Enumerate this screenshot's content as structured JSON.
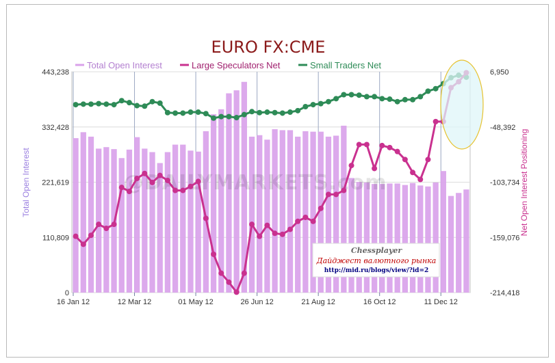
{
  "chart_data": {
    "type": "bar+line",
    "title": "EURO FX:CME",
    "legend_position": "top",
    "grid": true,
    "left_axis": {
      "label": "Total Open Interest",
      "ticks": [
        "443,238",
        "332,428",
        "221,619",
        "110,809",
        "0"
      ],
      "range": [
        0,
        443238
      ]
    },
    "right_axis": {
      "label": "Net Open Interest Positioning",
      "ticks": [
        "6,950",
        "-48,392",
        "-103,734",
        "-159,076",
        "-214,418"
      ],
      "range": [
        -214418,
        6950
      ]
    },
    "x_tick_labels": [
      "16 Jan 12",
      "12 Mar 12",
      "01 May 12",
      "26 Jun 12",
      "21 Aug 12",
      "16 Oct 12",
      "11 Dec 12"
    ],
    "series": [
      {
        "name": "Total Open Interest",
        "type": "bar",
        "axis": "left",
        "color": "#d9a2ea",
        "values": [
          310000,
          322000,
          313000,
          289000,
          292000,
          288000,
          270000,
          287000,
          312000,
          289000,
          282000,
          260000,
          282000,
          297000,
          297000,
          285000,
          283000,
          324000,
          358000,
          368000,
          400000,
          406000,
          423000,
          313000,
          316000,
          307000,
          328000,
          326000,
          326000,
          313000,
          324000,
          323000,
          323000,
          313000,
          315000,
          335000,
          230000,
          222000,
          221000,
          218000,
          218000,
          219000,
          219000,
          216000,
          220000,
          215000,
          213000,
          221000,
          244000,
          194000,
          200000,
          207000
        ]
      },
      {
        "name": "Large Speculators Net",
        "type": "line",
        "axis": "right",
        "color": "#c9318f",
        "values": [
          -158000,
          -166000,
          -157000,
          -146000,
          -150000,
          -146000,
          -109000,
          -113000,
          -100000,
          -95000,
          -104000,
          -97000,
          -102000,
          -112000,
          -112000,
          -108000,
          -103000,
          -140000,
          -176000,
          -195000,
          -204000,
          -214000,
          -195000,
          -146000,
          -158000,
          -147000,
          -155000,
          -156000,
          -151000,
          -143000,
          -139000,
          -143000,
          -130000,
          -116000,
          -116000,
          -112000,
          -87000,
          -66000,
          -66000,
          -90000,
          -67000,
          -69000,
          -73000,
          -81000,
          -94000,
          -101000,
          -81000,
          -43000,
          -43000,
          -9000,
          -3000,
          6000
        ]
      },
      {
        "name": "Small Traders Net",
        "type": "line",
        "axis": "right",
        "color": "#2e8b57",
        "values": [
          -26000,
          -25500,
          -25500,
          -25000,
          -25500,
          -26000,
          -22000,
          -24000,
          -27000,
          -27500,
          -23000,
          -24500,
          -34000,
          -34500,
          -34500,
          -33500,
          -33500,
          -35000,
          -39500,
          -38000,
          -38000,
          -39000,
          -36000,
          -33000,
          -34000,
          -33500,
          -34000,
          -34500,
          -33500,
          -32000,
          -28000,
          -26000,
          -25000,
          -23000,
          -20000,
          -16000,
          -16000,
          -16500,
          -18000,
          -18000,
          -20000,
          -20500,
          -23000,
          -21000,
          -21000,
          -18000,
          -12500,
          -10000,
          -5000,
          1000,
          3500,
          1500
        ]
      }
    ],
    "watermark": "@DAILYMARKETS.com",
    "ad_box": {
      "line1": "Chessplayer",
      "line2": "Дайджест валютного рынка",
      "line3": "http://mid.ru/blogs/view/?id=2"
    }
  }
}
